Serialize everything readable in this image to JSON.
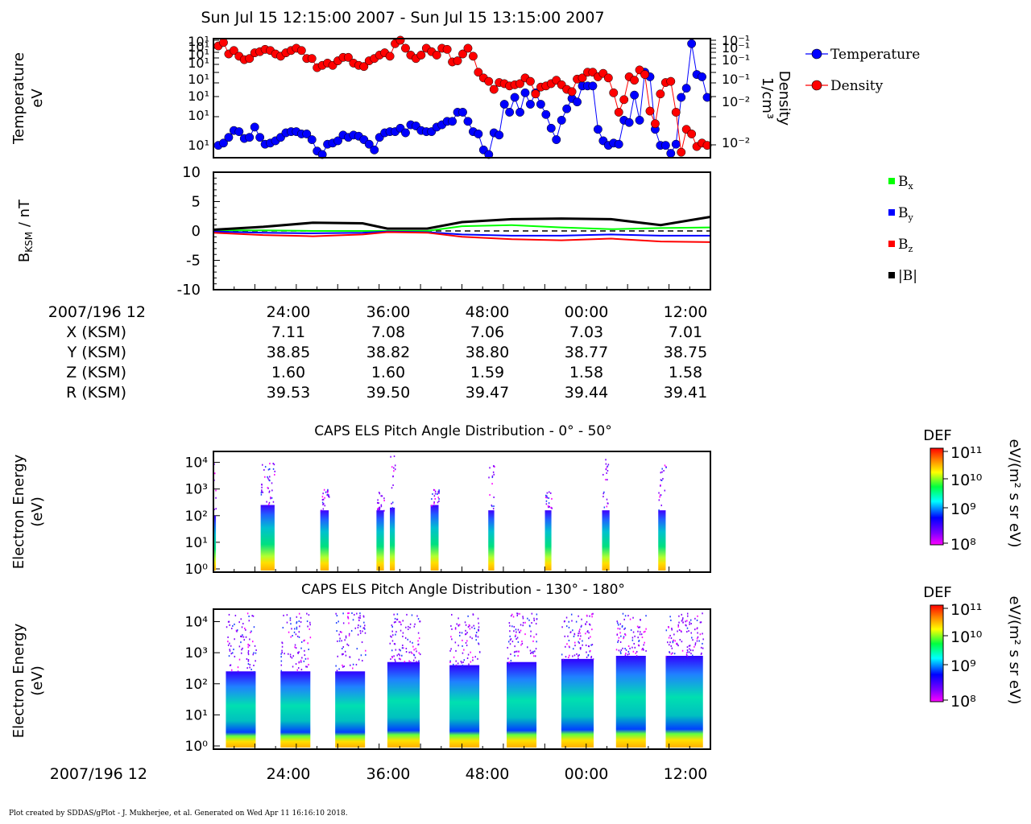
{
  "title": "Sun Jul 15 12:15:00 2007 - Sun Jul 15 13:15:00 2007",
  "footer": "Plot created by SDDAS/gPlot - J. Mukherjee, et al.  Generated on Wed Apr 11 16:16:10 2018.",
  "colors": {
    "temperature": "#0000ff",
    "density": "#ff0000",
    "bx": "#00ff00",
    "by": "#0000ff",
    "bz": "#ff0000",
    "bmag": "#000000"
  },
  "time_axis": {
    "start_label": "2007/196 12",
    "tick_labels": [
      "24:00",
      "36:00",
      "48:00",
      "00:00",
      "12:00"
    ]
  },
  "ephemeris": {
    "rows": [
      {
        "label": "X (KSM)",
        "values": [
          "7.11",
          "7.08",
          "7.06",
          "7.03",
          "7.01"
        ]
      },
      {
        "label": "Y (KSM)",
        "values": [
          "38.85",
          "38.82",
          "38.80",
          "38.77",
          "38.75"
        ]
      },
      {
        "label": "Z (KSM)",
        "values": [
          "1.60",
          "1.60",
          "1.59",
          "1.58",
          "1.58"
        ]
      },
      {
        "label": "R (KSM)",
        "values": [
          "39.53",
          "39.50",
          "39.47",
          "39.44",
          "39.41"
        ]
      }
    ]
  },
  "colorbar": {
    "title": "DEF",
    "units": "eV/(m² s sr eV)",
    "tick_labels": [
      "10¹¹",
      "10¹⁰",
      "10⁹",
      "10⁸"
    ]
  },
  "chart_data": [
    {
      "type": "line",
      "id": "moments",
      "ylabel": "Temperature\neV",
      "y2label": "Density\n1/cm³",
      "left_tick_labels": [
        "10¹",
        "10¹",
        "10¹",
        "10¹",
        "10¹",
        "10¹",
        "10¹",
        "10¹"
      ],
      "right_tick_labels": [
        "10⁻¹",
        "10⁻¹",
        "10⁻¹",
        "10⁻¹",
        "10⁻²",
        "10⁻²"
      ],
      "legend_position": "right",
      "series": [
        {
          "name": "Temperature",
          "marker": "circle",
          "values": [
            0.08,
            0.1,
            0.15,
            0.21,
            0.2,
            0.14,
            0.15,
            0.24,
            0.15,
            0.09,
            0.1,
            0.12,
            0.15,
            0.19,
            0.2,
            0.2,
            0.18,
            0.18,
            0.13,
            0.03,
            0.0,
            0.09,
            0.1,
            0.12,
            0.17,
            0.15,
            0.17,
            0.16,
            0.13,
            0.09,
            0.04,
            0.15,
            0.19,
            0.2,
            0.2,
            0.23,
            0.19,
            0.26,
            0.25,
            0.21,
            0.2,
            0.2,
            0.24,
            0.26,
            0.29,
            0.29,
            0.37,
            0.37,
            0.29,
            0.2,
            0.18,
            0.04,
            0.0,
            0.19,
            0.17,
            0.44,
            0.37,
            0.5,
            0.37,
            0.54,
            0.44,
            0.54,
            0.44,
            0.35,
            0.23,
            0.13,
            0.3,
            0.4,
            0.49,
            0.46,
            0.6,
            0.6,
            0.6,
            0.22,
            0.12,
            0.08,
            0.1,
            0.09,
            0.3,
            0.28,
            0.52,
            0.3,
            0.72,
            0.68,
            0.22,
            0.08,
            0.08,
            0.01,
            0.09,
            0.5,
            0.58,
            0.97,
            0.7,
            0.68,
            0.5
          ],
          "y_scale": "normalized-log"
        },
        {
          "name": "Density",
          "marker": "circle",
          "values": [
            0.95,
            0.98,
            0.88,
            0.91,
            0.86,
            0.83,
            0.84,
            0.89,
            0.9,
            0.92,
            0.91,
            0.88,
            0.86,
            0.89,
            0.91,
            0.93,
            0.91,
            0.84,
            0.84,
            0.76,
            0.78,
            0.8,
            0.78,
            0.82,
            0.85,
            0.85,
            0.8,
            0.78,
            0.77,
            0.82,
            0.84,
            0.87,
            0.89,
            0.86,
            0.97,
            1.0,
            0.93,
            0.87,
            0.84,
            0.87,
            0.93,
            0.9,
            0.87,
            0.93,
            0.92,
            0.81,
            0.82,
            0.88,
            0.93,
            0.86,
            0.72,
            0.67,
            0.64,
            0.57,
            0.63,
            0.62,
            0.6,
            0.61,
            0.62,
            0.67,
            0.64,
            0.53,
            0.59,
            0.6,
            0.62,
            0.65,
            0.61,
            0.57,
            0.55,
            0.66,
            0.67,
            0.72,
            0.72,
            0.68,
            0.71,
            0.67,
            0.54,
            0.37,
            0.48,
            0.68,
            0.65,
            0.74,
            0.7,
            0.38,
            0.27,
            0.53,
            0.63,
            0.64,
            0.37,
            0.02,
            0.22,
            0.18,
            0.07,
            0.1,
            0.08
          ],
          "y_scale": "normalized-log"
        }
      ]
    },
    {
      "type": "line",
      "id": "magnetic-field",
      "ylabel": "B KSM / nT",
      "ylim": [
        -10,
        10
      ],
      "y_ticks": [
        10,
        5,
        0,
        -5,
        -10
      ],
      "legend_position": "right",
      "series": [
        {
          "name": "Bx",
          "x_frac": [
            0.0,
            0.1,
            0.2,
            0.3,
            0.35,
            0.43,
            0.5,
            0.6,
            0.7,
            0.8,
            0.9,
            1.0
          ],
          "values": [
            0.1,
            0.1,
            0.0,
            0.0,
            0.0,
            0.0,
            0.8,
            1.0,
            0.6,
            0.3,
            0.5,
            0.6
          ]
        },
        {
          "name": "By",
          "x_frac": [
            0.0,
            0.1,
            0.2,
            0.3,
            0.35,
            0.43,
            0.5,
            0.6,
            0.7,
            0.8,
            0.9,
            1.0
          ],
          "values": [
            -0.1,
            -0.3,
            -0.4,
            -0.3,
            -0.1,
            -0.2,
            -0.6,
            -0.8,
            -0.8,
            -0.6,
            -0.8,
            -0.8
          ]
        },
        {
          "name": "Bz",
          "x_frac": [
            0.0,
            0.1,
            0.2,
            0.3,
            0.35,
            0.43,
            0.5,
            0.6,
            0.7,
            0.8,
            0.9,
            1.0
          ],
          "values": [
            -0.3,
            -0.7,
            -0.9,
            -0.6,
            -0.2,
            -0.3,
            -1.0,
            -1.4,
            -1.6,
            -1.3,
            -1.8,
            -1.9
          ]
        },
        {
          "name": "|B|",
          "x_frac": [
            0.0,
            0.1,
            0.2,
            0.3,
            0.35,
            0.43,
            0.5,
            0.6,
            0.7,
            0.8,
            0.9,
            1.0
          ],
          "values": [
            0.2,
            0.7,
            1.4,
            1.3,
            0.4,
            0.4,
            1.5,
            2.0,
            2.1,
            2.0,
            1.0,
            2.4
          ]
        }
      ]
    },
    {
      "type": "heatmap",
      "id": "pad-0-50",
      "title": "CAPS ELS Pitch Angle Distribution - 0° - 50°",
      "ylabel": "Electron Energy\n(eV)",
      "y_tick_labels": [
        "10⁴",
        "10³",
        "10²",
        "10¹",
        "10⁰"
      ],
      "zlim_log10": [
        8,
        11
      ],
      "bursts": [
        {
          "x0": 0.0,
          "x1": 0.005,
          "top_log10": 4.3,
          "core_top_log10": 2.0
        },
        {
          "x0": 0.095,
          "x1": 0.123,
          "top_log10": 4.0,
          "core_top_log10": 2.4
        },
        {
          "x0": 0.215,
          "x1": 0.232,
          "top_log10": 3.0,
          "core_top_log10": 2.2
        },
        {
          "x0": 0.328,
          "x1": 0.343,
          "top_log10": 3.0,
          "core_top_log10": 2.2
        },
        {
          "x0": 0.355,
          "x1": 0.365,
          "top_log10": 4.3,
          "core_top_log10": 2.3
        },
        {
          "x0": 0.437,
          "x1": 0.453,
          "top_log10": 3.0,
          "core_top_log10": 2.4
        },
        {
          "x0": 0.553,
          "x1": 0.565,
          "top_log10": 4.0,
          "core_top_log10": 2.2
        },
        {
          "x0": 0.667,
          "x1": 0.68,
          "top_log10": 3.0,
          "core_top_log10": 2.2
        },
        {
          "x0": 0.782,
          "x1": 0.797,
          "top_log10": 4.2,
          "core_top_log10": 2.2
        },
        {
          "x0": 0.895,
          "x1": 0.91,
          "top_log10": 4.0,
          "core_top_log10": 2.2
        }
      ]
    },
    {
      "type": "heatmap",
      "id": "pad-130-180",
      "title": "CAPS ELS Pitch Angle Distribution - 130° - 180°",
      "ylabel": "Electron Energy\n(eV)",
      "y_tick_labels": [
        "10⁴",
        "10³",
        "10²",
        "10¹",
        "10⁰"
      ],
      "zlim_log10": [
        8,
        11
      ],
      "bursts": [
        {
          "x0": 0.025,
          "x1": 0.085,
          "top_log10": 4.3,
          "core_top_log10": 2.4
        },
        {
          "x0": 0.135,
          "x1": 0.195,
          "top_log10": 4.3,
          "core_top_log10": 2.4
        },
        {
          "x0": 0.245,
          "x1": 0.305,
          "top_log10": 4.3,
          "core_top_log10": 2.4
        },
        {
          "x0": 0.35,
          "x1": 0.415,
          "top_log10": 4.3,
          "core_top_log10": 2.7
        },
        {
          "x0": 0.475,
          "x1": 0.535,
          "top_log10": 4.3,
          "core_top_log10": 2.6
        },
        {
          "x0": 0.59,
          "x1": 0.65,
          "top_log10": 4.3,
          "core_top_log10": 2.7
        },
        {
          "x0": 0.7,
          "x1": 0.765,
          "top_log10": 4.3,
          "core_top_log10": 2.8
        },
        {
          "x0": 0.81,
          "x1": 0.87,
          "top_log10": 4.3,
          "core_top_log10": 2.9
        },
        {
          "x0": 0.91,
          "x1": 0.985,
          "top_log10": 4.3,
          "core_top_log10": 2.9
        }
      ]
    }
  ]
}
